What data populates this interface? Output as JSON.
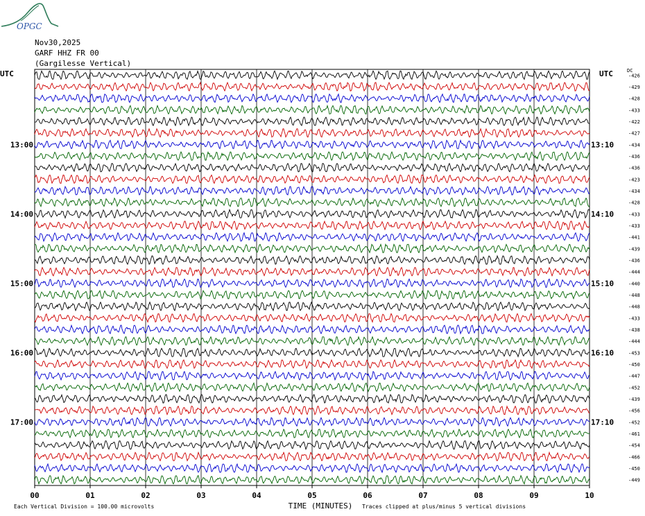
{
  "logo": {
    "text": "OPGC",
    "color": "#2f7d5a",
    "text_color": "#2d56a8"
  },
  "header": {
    "date": "Nov30,2025",
    "channel": "GARF HHZ FR 00",
    "station": "(Gargilesse Vertical)"
  },
  "chart_data": {
    "type": "line",
    "title": "",
    "left_corner_label": "UTC",
    "right_corner_label": "UTC",
    "dc_label": "DC",
    "xlabel": "TIME (MINUTES)",
    "xlim": [
      0,
      10
    ],
    "x_ticks": [
      "00",
      "01",
      "02",
      "03",
      "04",
      "05",
      "06",
      "07",
      "08",
      "09",
      "10"
    ],
    "left_hour_labels": [
      {
        "row": 6,
        "label": "13:00"
      },
      {
        "row": 12,
        "label": "14:00"
      },
      {
        "row": 18,
        "label": "15:00"
      },
      {
        "row": 24,
        "label": "16:00"
      },
      {
        "row": 30,
        "label": "17:00"
      }
    ],
    "right_hour_labels": [
      {
        "row": 6,
        "label": "13:10"
      },
      {
        "row": 12,
        "label": "14:10"
      },
      {
        "row": 18,
        "label": "15:10"
      },
      {
        "row": 24,
        "label": "16:10"
      },
      {
        "row": 30,
        "label": "17:10"
      }
    ],
    "trace_colors": [
      "#000000",
      "#d00000",
      "#0000d0",
      "#006400"
    ],
    "dc_offsets": [
      "-426",
      "-429",
      "-428",
      "-433",
      "-422",
      "-427",
      "-434",
      "-436",
      "-436",
      "-423",
      "-434",
      "-428",
      "-433",
      "-433",
      "-441",
      "-439",
      "-436",
      "-444",
      "-440",
      "-448",
      "-448",
      "-433",
      "-438",
      "-444",
      "-453",
      "-450",
      "-447",
      "-452",
      "-439",
      "-456",
      "-452",
      "-461",
      "-454",
      "-466",
      "-450",
      "-449"
    ],
    "footer_left": "Each Vertical Division =  100.00 microvolts",
    "footer_right": "Traces clipped at plus/minus 5 vertical divisions"
  }
}
